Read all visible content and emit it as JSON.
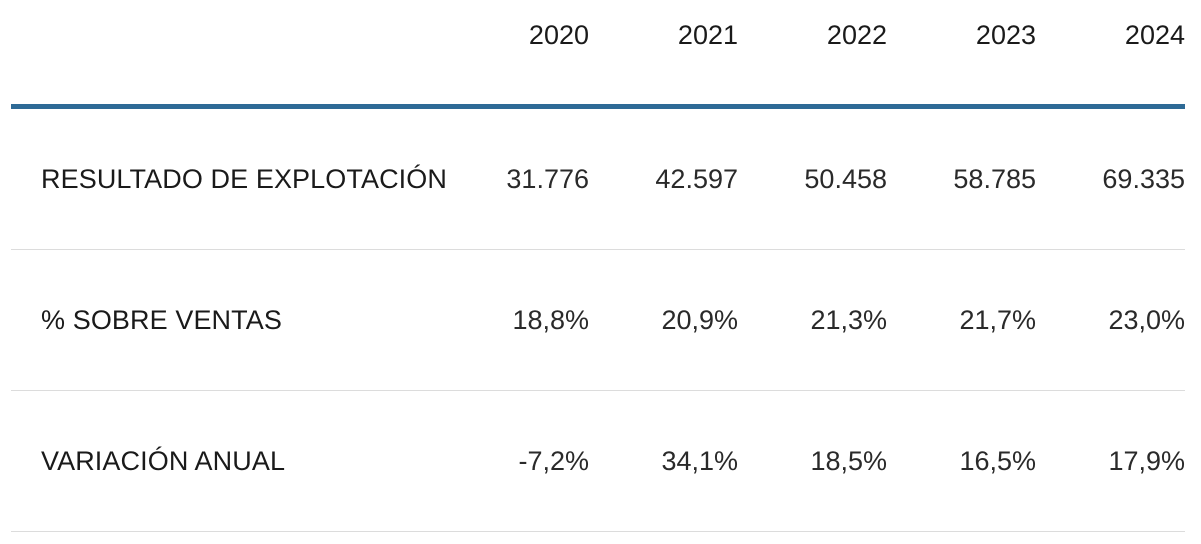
{
  "header": {
    "years": [
      "2020",
      "2021",
      "2022",
      "2023",
      "2024"
    ]
  },
  "colors": {
    "accent_rule": "#2e6a96",
    "row_divider": "#dcdcdc",
    "text": "#1a1a1a"
  },
  "rows": [
    {
      "label": "RESULTADO DE EXPLOTACIÓN",
      "values": [
        "31.776",
        "42.597",
        "50.458",
        "58.785",
        "69.335"
      ]
    },
    {
      "label": "% SOBRE VENTAS",
      "values": [
        "18,8%",
        "20,9%",
        "21,3%",
        "21,7%",
        "23,0%"
      ]
    },
    {
      "label": "VARIACIÓN ANUAL",
      "values": [
        "-7,2%",
        "34,1%",
        "18,5%",
        "16,5%",
        "17,9%"
      ]
    }
  ]
}
